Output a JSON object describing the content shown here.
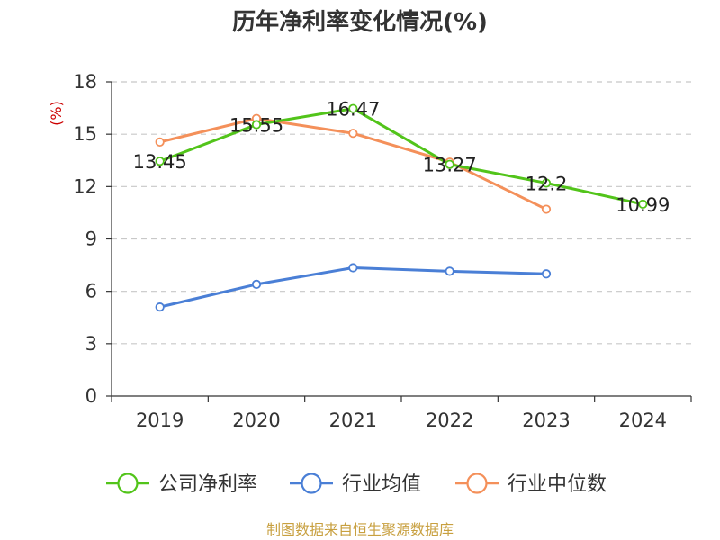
{
  "chart_data": {
    "type": "line",
    "title": "历年净利率变化情况(%)",
    "ylabel": "(%)",
    "categories": [
      "2019",
      "2020",
      "2021",
      "2022",
      "2023",
      "2024"
    ],
    "ylim": [
      0,
      18
    ],
    "yticks": [
      0,
      3,
      6,
      9,
      12,
      15,
      18
    ],
    "grid": true,
    "legend": "bottom",
    "series": [
      {
        "name": "公司净利率",
        "color": "#52c41a",
        "values": [
          13.45,
          15.55,
          16.47,
          13.27,
          12.2,
          10.99
        ],
        "labels": [
          "13.45",
          "15.55",
          "16.47",
          "13.27",
          "12.2",
          "10.99"
        ]
      },
      {
        "name": "行业均值",
        "color": "#4a7fd6",
        "values": [
          5.1,
          6.4,
          7.35,
          7.15,
          7.0,
          null
        ]
      },
      {
        "name": "行业中位数",
        "color": "#f4905a",
        "values": [
          14.55,
          15.9,
          15.05,
          13.4,
          10.7,
          null
        ]
      }
    ]
  },
  "source": "制图数据来自恒生聚源数据库"
}
